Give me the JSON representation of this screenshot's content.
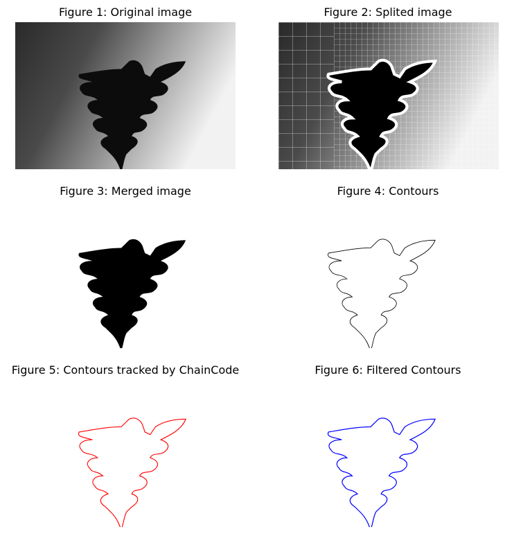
{
  "figures": [
    {
      "title": "Figure 1: Original image"
    },
    {
      "title": "Figure 2: Splited image"
    },
    {
      "title": "Figure 3: Merged image"
    },
    {
      "title": "Figure 4: Contours"
    },
    {
      "title": "Figure 5: Contours tracked by ChainCode"
    },
    {
      "title": "Figure 6: Filtered Contours"
    }
  ],
  "colors": {
    "contour_black": "#000000",
    "chaincode_red": "#ff0000",
    "filtered_blue": "#0000ff",
    "split_lines": "#ffffff"
  }
}
